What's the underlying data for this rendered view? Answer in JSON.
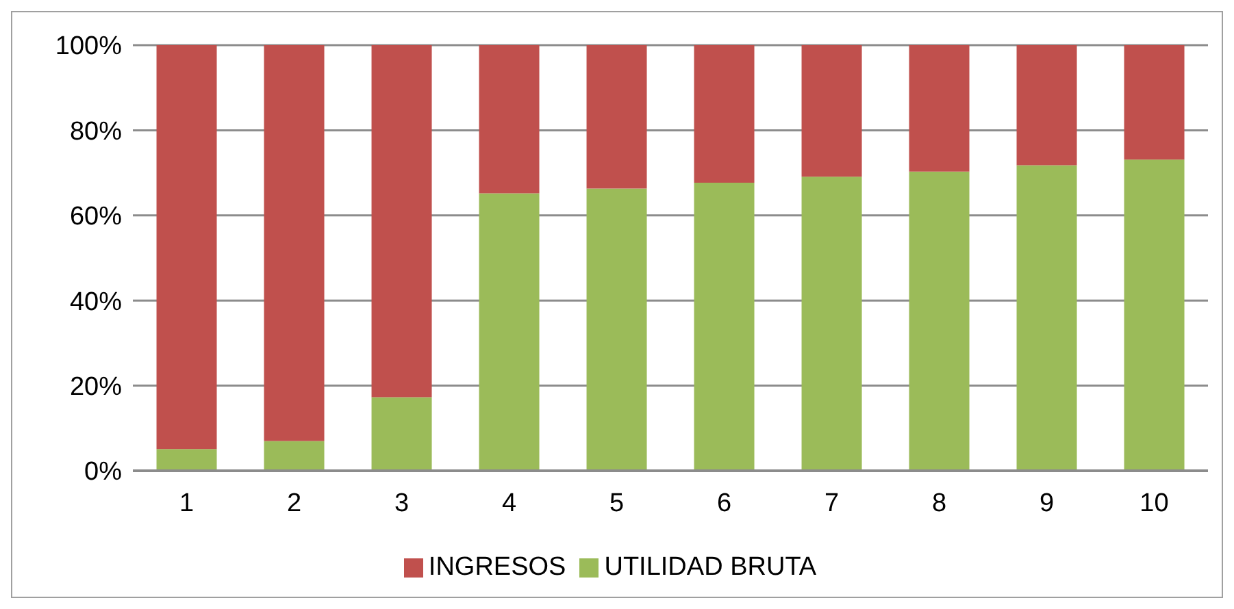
{
  "chart_data": {
    "type": "bar",
    "stacked": true,
    "categories": [
      "1",
      "2",
      "3",
      "4",
      "5",
      "6",
      "7",
      "8",
      "9",
      "10"
    ],
    "series": [
      {
        "name": "UTILIDAD BRUTA",
        "color": "#9bbb59",
        "values": [
          5.1,
          7,
          17.3,
          65.2,
          66.3,
          67.7,
          69.1,
          70.3,
          71.8,
          73.1
        ]
      },
      {
        "name": "INGRESOS",
        "color": "#c0504d",
        "values": [
          94.9,
          93,
          82.7,
          34.8,
          33.7,
          32.3,
          30.9,
          29.7,
          28.2,
          26.9
        ]
      }
    ],
    "ylim": [
      0,
      100
    ],
    "yticks": [
      {
        "value": 0,
        "label": "0%"
      },
      {
        "value": 20,
        "label": "20%"
      },
      {
        "value": 40,
        "label": "40%"
      },
      {
        "value": 60,
        "label": "60%"
      },
      {
        "value": 80,
        "label": "80%"
      },
      {
        "value": 100,
        "label": "100%"
      }
    ],
    "grid": "y",
    "legend": "bottom"
  }
}
